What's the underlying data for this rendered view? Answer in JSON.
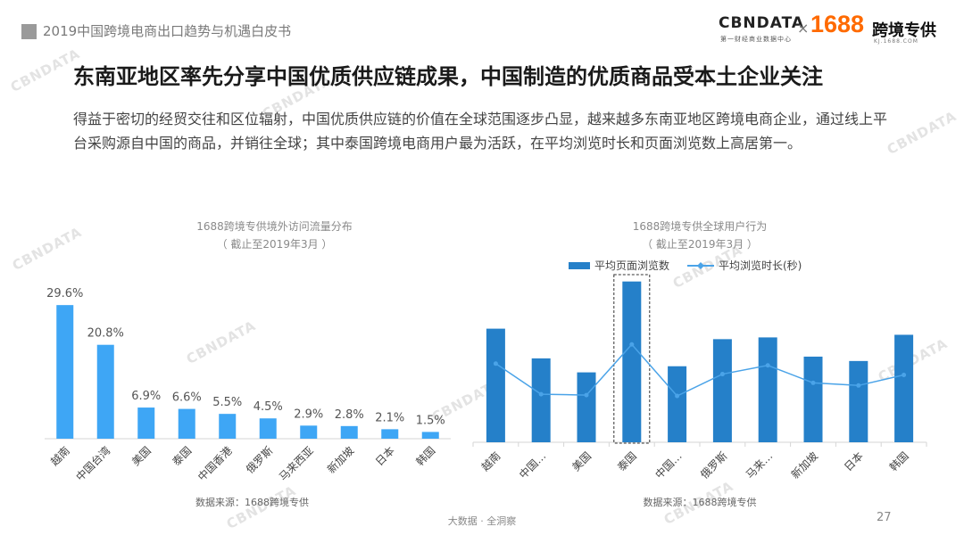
{
  "header": {
    "title": "2019中国跨境电商出口趋势与机遇白皮书",
    "logo_cbn": "CBNDATA",
    "logo_cbn_sub": "第一财经商业数据中心",
    "logo_x": "×",
    "logo_1688": "1688",
    "logo_zh": "跨境专供",
    "logo_url": "KJ.1688.COM"
  },
  "title": "东南亚地区率先分享中国优质供应链成果，中国制造的优质商品受本土企业关注",
  "description": "得益于密切的经贸交往和区位辐射，中国优质供应链的价值在全球范围逐步凸显，越来越多东南亚地区跨境电商企业，通过线上平台采购源自中国的商品，并销往全球；其中泰国跨境电商用户最为活跃，在平均浏览时长和页面浏览数上高居第一。",
  "watermark": "CBNDATA",
  "chart_data": [
    {
      "type": "bar",
      "title": "1688跨境专供境外访问流量分布",
      "subtitle": "（ 截止至2019年3月 ）",
      "categories": [
        "越南",
        "中国台湾",
        "美国",
        "泰国",
        "中国香港",
        "俄罗斯",
        "马来西亚",
        "新加坡",
        "日本",
        "韩国"
      ],
      "values": [
        29.6,
        20.8,
        6.9,
        6.6,
        5.5,
        4.5,
        2.9,
        2.8,
        2.1,
        1.5
      ],
      "value_labels": [
        "29.6%",
        "20.8%",
        "6.9%",
        "6.6%",
        "5.5%",
        "4.5%",
        "2.9%",
        "2.8%",
        "2.1%",
        "1.5%"
      ],
      "ylim": [
        0,
        32
      ],
      "grid": false,
      "color": "#3ea6f5",
      "source": "数据来源：1688跨境专供"
    },
    {
      "type": "bar",
      "title": "1688跨境专供全球用户行为",
      "subtitle": "（ 截止至2019年3月 ）",
      "categories": [
        "越南",
        "中国…",
        "美国",
        "泰国",
        "中国…",
        "俄罗斯",
        "马来…",
        "新加坡",
        "日本",
        "韩国"
      ],
      "series": [
        {
          "name": "平均页面浏览数",
          "type": "bar",
          "color": "#2580c9",
          "values": [
            130,
            96,
            80,
            184,
            87,
            118,
            120,
            98,
            93,
            123
          ]
        },
        {
          "name": "平均浏览时长(秒)",
          "type": "line",
          "color": "#4aa3e8",
          "values": [
            90,
            55,
            54,
            112,
            53,
            78,
            88,
            68,
            65,
            77
          ]
        }
      ],
      "ylim": [
        0,
        200
      ],
      "legend": "top",
      "highlight_category": "泰国",
      "grid": false,
      "source": "数据来源：1688跨境专供"
    }
  ],
  "footer": {
    "text": "大数据 · 全洞察",
    "page": "27"
  }
}
